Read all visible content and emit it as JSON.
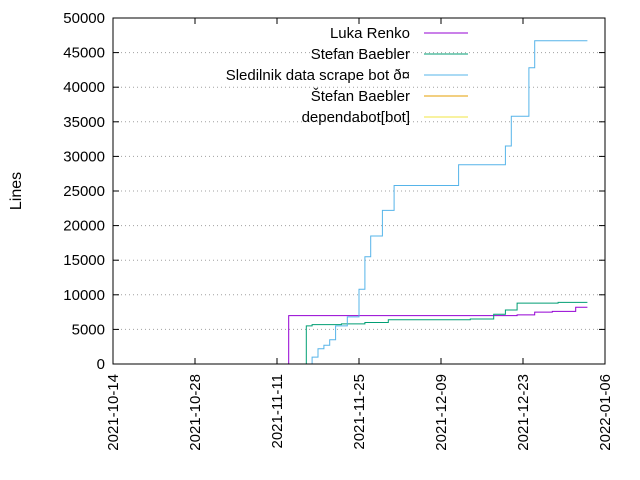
{
  "chart_data": {
    "type": "line",
    "ylabel": "Lines",
    "x_type": "date",
    "xlim": [
      "2021-10-14",
      "2022-01-06"
    ],
    "ylim": [
      0,
      50000
    ],
    "y_ticks": [
      0,
      5000,
      10000,
      15000,
      20000,
      25000,
      30000,
      35000,
      40000,
      45000,
      50000
    ],
    "x_ticks": [
      "2021-10-14",
      "2021-10-28",
      "2021-11-11",
      "2021-11-25",
      "2021-12-09",
      "2021-12-23",
      "2022-01-06"
    ],
    "grid": true,
    "legend_position": "top-right",
    "series": [
      {
        "name": "Luka Renko",
        "color": "#9400d3",
        "step": true,
        "points": [
          [
            "2021-11-13",
            0
          ],
          [
            "2021-11-13",
            7000
          ],
          [
            "2021-12-20",
            7000
          ],
          [
            "2021-12-22",
            7100
          ],
          [
            "2021-12-25",
            7500
          ],
          [
            "2021-12-28",
            7600
          ],
          [
            "2022-01-01",
            8200
          ],
          [
            "2022-01-03",
            8200
          ]
        ]
      },
      {
        "name": "Stefan Baebler",
        "color": "#009e73",
        "step": true,
        "points": [
          [
            "2021-11-15",
            0
          ],
          [
            "2021-11-16",
            5500
          ],
          [
            "2021-11-17",
            5700
          ],
          [
            "2021-11-22",
            5800
          ],
          [
            "2021-11-26",
            6000
          ],
          [
            "2021-11-30",
            6400
          ],
          [
            "2021-12-14",
            6500
          ],
          [
            "2021-12-18",
            7200
          ],
          [
            "2021-12-20",
            7800
          ],
          [
            "2021-12-22",
            8800
          ],
          [
            "2021-12-29",
            8900
          ],
          [
            "2022-01-03",
            8900
          ]
        ]
      },
      {
        "name": "Sledilnik data scrape bot ð\u000f¤\u000f",
        "color": "#56b4e9",
        "step": true,
        "points": [
          [
            "2021-11-14",
            0
          ],
          [
            "2021-11-17",
            1000
          ],
          [
            "2021-11-18",
            2200
          ],
          [
            "2021-11-19",
            2700
          ],
          [
            "2021-11-20",
            3500
          ],
          [
            "2021-11-21",
            5500
          ],
          [
            "2021-11-23",
            6800
          ],
          [
            "2021-11-25",
            10800
          ],
          [
            "2021-11-26",
            15500
          ],
          [
            "2021-11-27",
            18500
          ],
          [
            "2021-11-29",
            22200
          ],
          [
            "2021-12-01",
            25800
          ],
          [
            "2021-12-12",
            28800
          ],
          [
            "2021-12-20",
            31500
          ],
          [
            "2021-12-21",
            35800
          ],
          [
            "2021-12-24",
            42800
          ],
          [
            "2021-12-25",
            46700
          ],
          [
            "2022-01-03",
            46700
          ]
        ]
      },
      {
        "name": "Štefan Baebler",
        "color": "#e69f00",
        "step": true,
        "points": []
      },
      {
        "name": "dependabot[bot]",
        "color": "#f0e442",
        "step": true,
        "points": []
      }
    ]
  }
}
